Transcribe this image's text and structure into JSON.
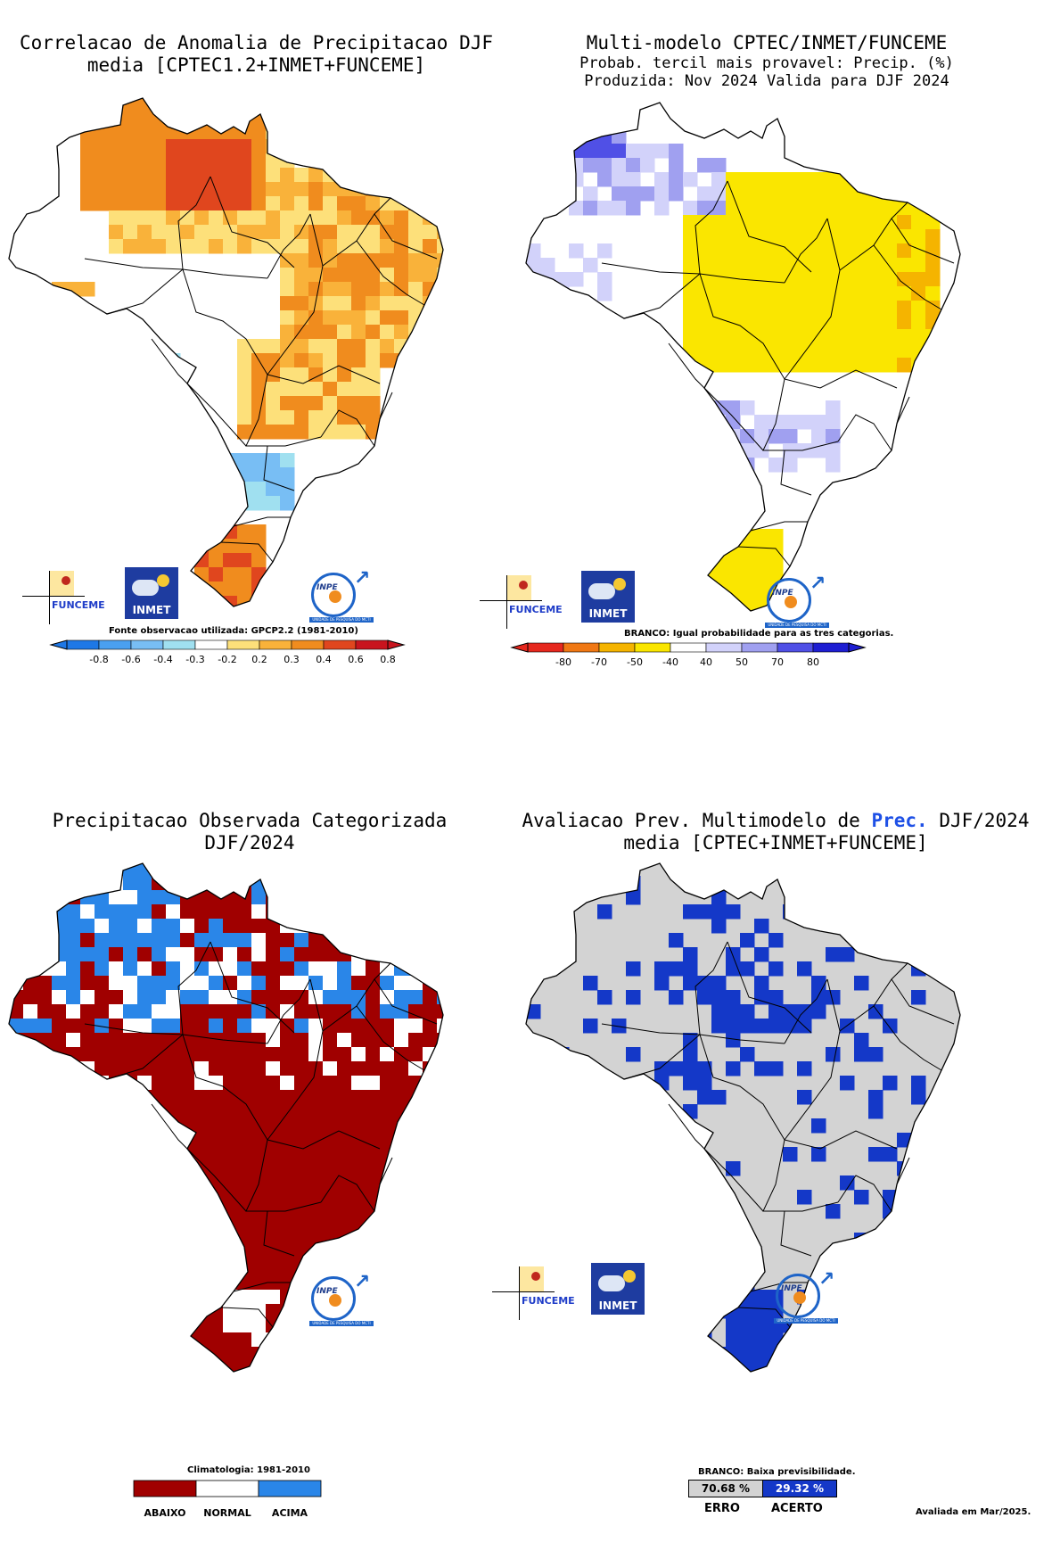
{
  "panel1": {
    "title_line1": "Correlacao de Anomalia de Precipitacao DJF",
    "title_line2": "media [CPTEC1.2+INMET+FUNCEME]",
    "source_note": "Fonte observacao utilizada: GPCP2.2 (1981-2010)",
    "colorbar_ticks": [
      "-0.8",
      "-0.6",
      "-0.4",
      "-0.3",
      "-0.2",
      "0.2",
      "0.3",
      "0.4",
      "0.6",
      "0.8"
    ],
    "colors": [
      "#1e78e6",
      "#4aa0f0",
      "#78bef4",
      "#a0e0f0",
      "#ffffff",
      "#fde07a",
      "#f9b23a",
      "#f08c1e",
      "#e0461e",
      "#c8141e"
    ]
  },
  "panel2": {
    "title_line1": "Multi-modelo CPTEC/INMET/FUNCEME",
    "title_line2": "Probab. tercil mais provavel: Precip. (%)",
    "title_line3": "Produzida: Nov 2024  Valida para DJF 2024",
    "note": "BRANCO: Igual probabilidade para as tres categorias.",
    "colorbar_ticks": [
      "-80",
      "-70",
      "-50",
      "-40",
      "40",
      "50",
      "70",
      "80"
    ],
    "colors": [
      "#e6281e",
      "#f07814",
      "#f5b400",
      "#fae600",
      "#ffffff",
      "#d2d2fa",
      "#a0a0f0",
      "#5050e6",
      "#1e1ed2"
    ]
  },
  "panel3": {
    "title_line1": "Precipitacao Observada Categorizada",
    "title_line2": "DJF/2024",
    "climatology_note": "Climatologia: 1981-2010",
    "categories": [
      "ABAIXO",
      "NORMAL",
      "ACIMA"
    ],
    "colors": [
      "#a00000",
      "#ffffff",
      "#2a86e8"
    ]
  },
  "panel4": {
    "title_line1_prefix": "Avaliacao Prev. Multimodelo de",
    "title_line1_highlight": "Prec.",
    "title_line1_suffix": "DJF/2024",
    "title_line2": "media [CPTEC+INMET+FUNCEME]",
    "note": "BRANCO: Baixa previsibilidade.",
    "erro_value": "70.68 %",
    "acerto_value": "29.32 %",
    "erro_label": "ERRO",
    "acerto_label": "ACERTO",
    "evaluated": "Avaliada em Mar/2025.",
    "colors": {
      "erro": "#d3d3d3",
      "acerto": "#1438c8"
    }
  },
  "logos": {
    "funceme": "FUNCEME",
    "inmet": "INMET",
    "inpe": "INPE",
    "inpe_caption": "UNIDADE DE PESQUISA DO MCTI"
  }
}
